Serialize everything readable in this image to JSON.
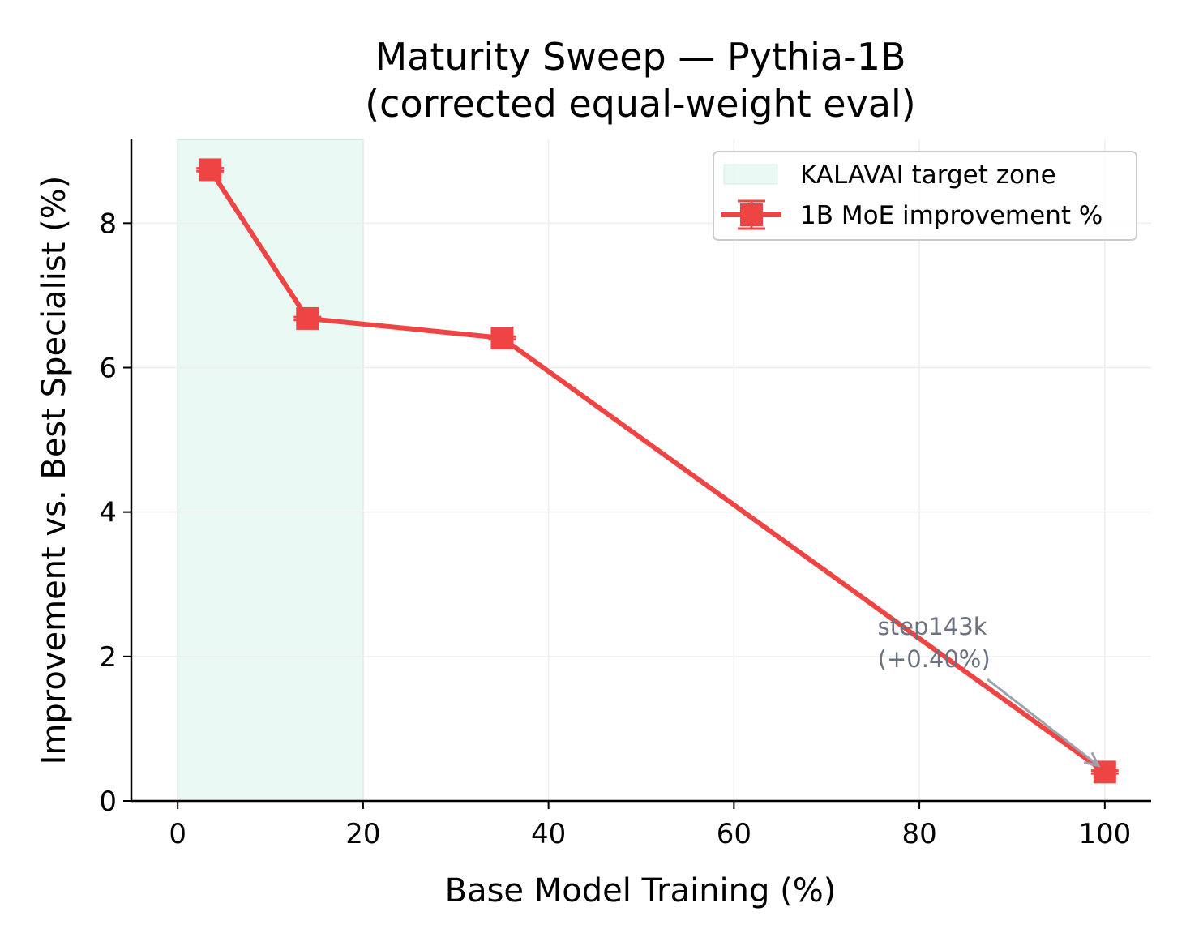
{
  "chart_data": {
    "type": "line",
    "title": "Maturity Sweep — Pythia-1B",
    "subtitle": "(corrected equal-weight eval)",
    "xlabel": "Base Model Training (%)",
    "ylabel": "Improvement vs. Best Specialist (%)",
    "xlim": [
      -5,
      105
    ],
    "ylim": [
      0,
      9.16
    ],
    "xticks": [
      0,
      20,
      40,
      60,
      80,
      100
    ],
    "yticks": [
      0,
      2,
      4,
      6,
      8
    ],
    "grid": true,
    "legend_position": "top-right",
    "shaded_region": {
      "name": "KALAVAI target zone",
      "x": [
        0,
        20
      ],
      "color": "#d1f2e6"
    },
    "series": [
      {
        "name": "1B MoE improvement %",
        "color": "#ef4444",
        "marker": "square",
        "x": [
          3.5,
          14,
          35,
          100
        ],
        "y": [
          8.74,
          6.68,
          6.41,
          0.4
        ],
        "yerr": [
          0.02,
          0.02,
          0.02,
          0.02
        ]
      }
    ],
    "annotations": [
      {
        "text_lines": [
          "step143k",
          "(+0.40%)"
        ],
        "x": 75.5,
        "y": 2.1,
        "arrow_to": [
          100,
          0.4
        ],
        "color": "#6b7280"
      }
    ]
  }
}
